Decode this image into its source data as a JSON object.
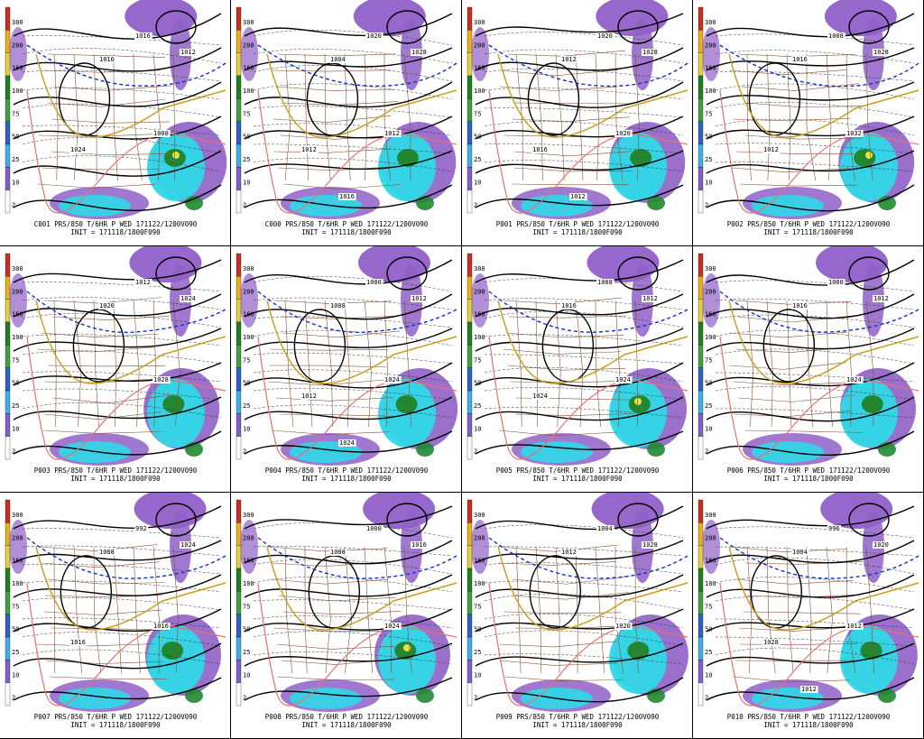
{
  "panels": [
    {
      "caption": "C001 PRS/850 T/6HR P WED 171122/1200V090",
      "init": "INIT = 171118/1800F090",
      "isobar_labels": [
        "1016",
        "1016",
        "1008",
        "1012",
        "1024"
      ]
    },
    {
      "caption": "C000 PRS/850 T/6HR P WED 171122/1200V090",
      "init": "INIT = 171118/1800F090",
      "isobar_labels": [
        "1020",
        "1004",
        "1012",
        "1028",
        "1012",
        "1016"
      ]
    },
    {
      "caption": "P001 PRS/850 T/6HR P WED 171122/1200V090",
      "init": "INIT = 171118/1800F090",
      "isobar_labels": [
        "1020",
        "1012",
        "1020",
        "1028",
        "1016",
        "1012"
      ]
    },
    {
      "caption": "P002 PRS/850 T/6HR P WED 171122/1200V090",
      "init": "INIT = 171118/1800F090",
      "isobar_labels": [
        "1008",
        "1016",
        "1032",
        "1028",
        "1012"
      ]
    },
    {
      "caption": "P003 PRS/850 T/6HR P WED 171122/1200V090",
      "init": "INIT = 171118/1800F090",
      "isobar_labels": [
        "1012",
        "1020",
        "1028",
        "1024"
      ]
    },
    {
      "caption": "P004 PRS/850 T/6HR P WED 171122/1200V090",
      "init": "INIT = 171118/1800F090",
      "isobar_labels": [
        "1000",
        "1008",
        "1024",
        "1012",
        "1012",
        "1024"
      ]
    },
    {
      "caption": "P005 PRS/850 T/6HR P WED 171122/1200V090",
      "init": "INIT = 171118/1800F090",
      "isobar_labels": [
        "1008",
        "1016",
        "1024",
        "1012",
        "1024"
      ]
    },
    {
      "caption": "P006 PRS/850 T/6HR P WED 171122/1200V090",
      "init": "INIT = 171118/1800F090",
      "isobar_labels": [
        "1000",
        "1016",
        "1024",
        "1012"
      ]
    },
    {
      "caption": "P007 PRS/850 T/6HR P WED 171122/1200V090",
      "init": "INIT = 171118/1800F090",
      "isobar_labels": [
        "992",
        "1008",
        "1016",
        "1024",
        "1016"
      ]
    },
    {
      "caption": "P008 PRS/850 T/6HR P WED 171122/1200V090",
      "init": "INIT = 171118/1800F090",
      "isobar_labels": [
        "1000",
        "1008",
        "1024",
        "1016"
      ]
    },
    {
      "caption": "P009 PRS/850 T/6HR P WED 171122/1200V090",
      "init": "INIT = 171118/1800F090",
      "isobar_labels": [
        "1004",
        "1012",
        "1020",
        "1028"
      ]
    },
    {
      "caption": "P010 PRS/850 T/6HR P WED 171122/1200V090",
      "init": "INIT = 171118/1800F090",
      "isobar_labels": [
        "996",
        "1004",
        "1012",
        "1020",
        "1028",
        "1012"
      ]
    }
  ],
  "colorbar": {
    "ticks": [
      "300",
      "200",
      "160",
      "100",
      "75",
      "50",
      "25",
      "10",
      "2"
    ],
    "colors": [
      "#c83020",
      "#e8b020",
      "#e0d040",
      "#208020",
      "#40a040",
      "#3060c0",
      "#40b0e0",
      "#8060c0",
      "#ffffff"
    ]
  },
  "colors": {
    "precip_light": "#9060c8",
    "precip_mid": "#30d8e8",
    "precip_heavy": "#208830",
    "precip_extreme": "#e8e040",
    "isobar": "#000000",
    "freezing_line": "#1030d0",
    "isotherm_warm": "#e87070",
    "isotherm_gold": "#c8a020",
    "borders": "#8a5030"
  }
}
